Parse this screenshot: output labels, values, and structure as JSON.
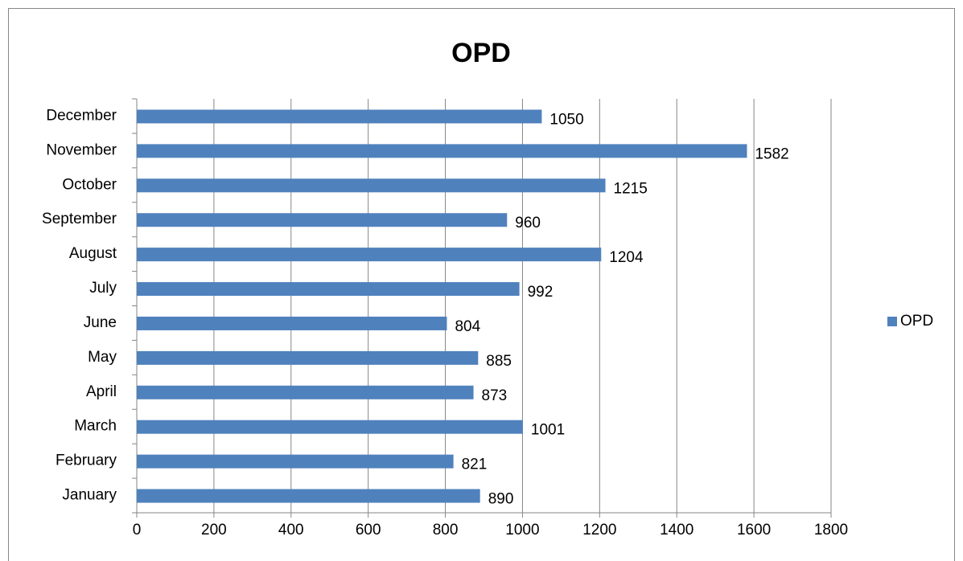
{
  "chart_data": {
    "type": "hbar",
    "title": "OPD",
    "categories": [
      "January",
      "February",
      "March",
      "April",
      "May",
      "June",
      "July",
      "August",
      "September",
      "October",
      "November",
      "December"
    ],
    "series": [
      {
        "name": "OPD",
        "color": "#4f81bd",
        "values": [
          890,
          821,
          1001,
          873,
          885,
          804,
          992,
          1204,
          960,
          1215,
          1582,
          1050
        ]
      }
    ],
    "xlim": [
      0,
      1800
    ],
    "xticks": [
      0,
      200,
      400,
      600,
      800,
      1000,
      1200,
      1400,
      1600,
      1800
    ],
    "grid": true,
    "legend": "right"
  }
}
